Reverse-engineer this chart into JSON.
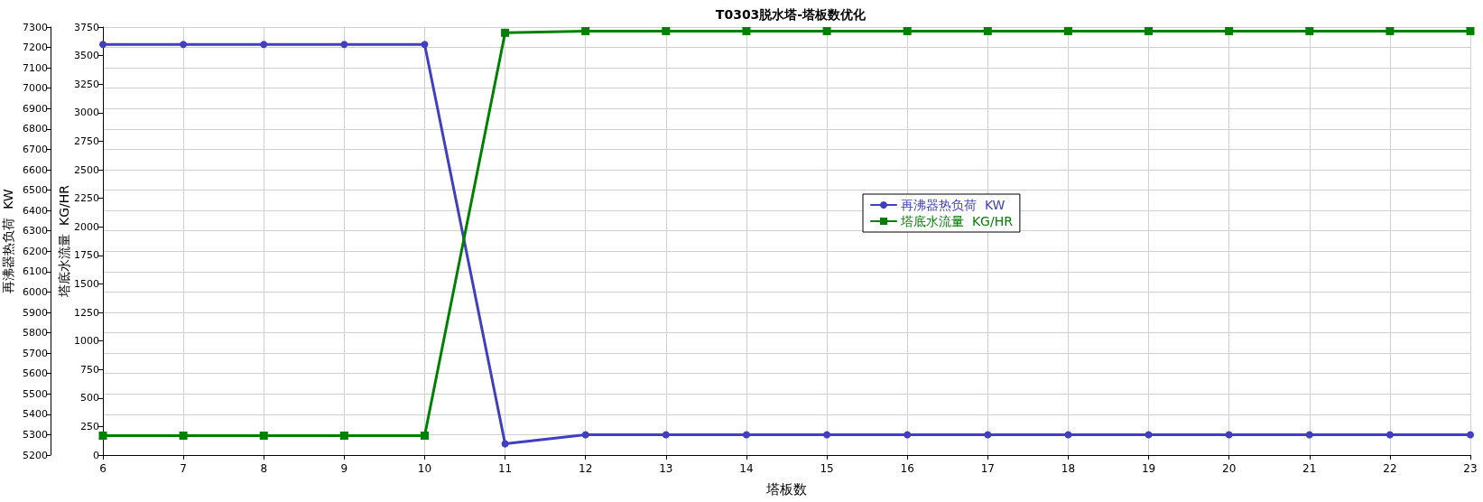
{
  "chart_data": {
    "type": "line",
    "title": "T0303脱水塔-塔板数优化",
    "xlabel": "塔板数",
    "ylabel": "再沸器热负荷  KW",
    "y2label": "塔底水流量  KG/HR",
    "x": [
      6,
      7,
      8,
      9,
      10,
      11,
      12,
      13,
      14,
      15,
      16,
      17,
      18,
      19,
      20,
      21,
      22,
      23
    ],
    "series": [
      {
        "name": "再沸器热负荷  KW",
        "color": "#3f3fbf",
        "marker": "circle",
        "values": [
          7215,
          7215,
          7215,
          7215,
          7215,
          5255,
          5300,
          5300,
          5300,
          5300,
          5300,
          5300,
          5300,
          5300,
          5300,
          5300,
          5300,
          5300
        ]
      },
      {
        "name": "塔底水流量  KG/HR",
        "color": "#008000",
        "marker": "square",
        "axis": "y2",
        "values": [
          170,
          170,
          170,
          170,
          170,
          3700,
          3715,
          3715,
          3715,
          3715,
          3715,
          3715,
          3715,
          3715,
          3715,
          3715,
          3715,
          3715
        ]
      }
    ],
    "xlim": [
      6,
      23
    ],
    "xticks": [
      6,
      7,
      8,
      9,
      10,
      11,
      12,
      13,
      14,
      15,
      16,
      17,
      18,
      19,
      20,
      21,
      22,
      23
    ],
    "ylim": [
      5200,
      7300
    ],
    "yticks": [
      5200,
      5300,
      5400,
      5500,
      5600,
      5700,
      5800,
      5900,
      6000,
      6100,
      6200,
      6300,
      6400,
      6500,
      6600,
      6700,
      6800,
      6900,
      7000,
      7100,
      7200,
      7300
    ],
    "y2lim": [
      0,
      3750
    ],
    "y2ticks": [
      0,
      250,
      500,
      750,
      1000,
      1250,
      1500,
      1750,
      2000,
      2250,
      2500,
      2750,
      3000,
      3250,
      3500,
      3750
    ],
    "grid": true,
    "legend": "center",
    "line_style": "solid"
  }
}
